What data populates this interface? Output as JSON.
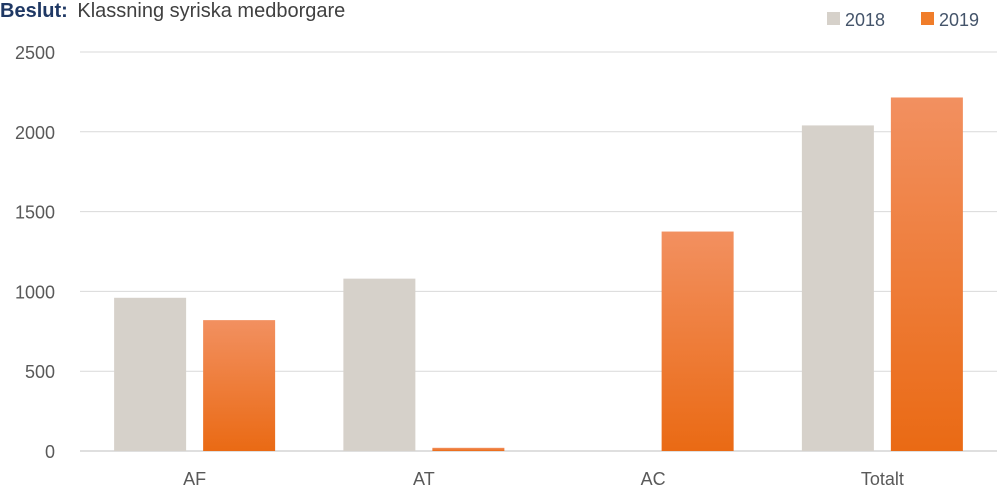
{
  "chart_data": {
    "type": "bar",
    "title_prefix": "Beslut:",
    "title": "Klassning syriska medborgare",
    "categories": [
      "AF",
      "AT",
      "AC",
      "Totalt"
    ],
    "series": [
      {
        "name": "2018",
        "values": [
          960,
          1080,
          0,
          2040
        ],
        "color": "#d6d1ca"
      },
      {
        "name": "2019",
        "values": [
          820,
          20,
          1375,
          2215
        ],
        "color": "#f07d2a",
        "gradient_top": "#f29060",
        "gradient_bottom": "#ea6a14"
      }
    ],
    "ylim": [
      0,
      2500
    ],
    "yticks": [
      "0",
      "500",
      "1000",
      "1500",
      "2000",
      "2500"
    ],
    "grid": true,
    "legend_position": "top-right"
  }
}
